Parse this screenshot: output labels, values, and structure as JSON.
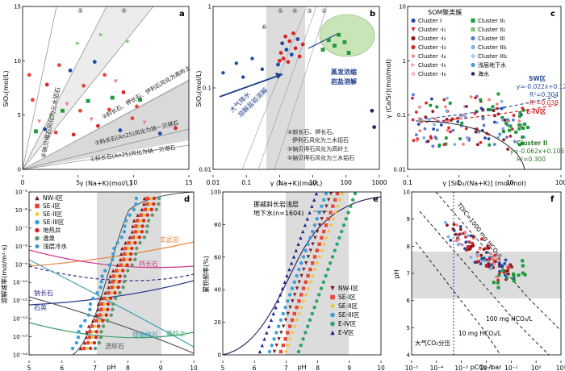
{
  "chart_data": [
    {
      "panel": "a",
      "type": "scatter",
      "xlabel": "γ (Na+K)(mol/L)",
      "ylabel": "SiO2(mol/L)",
      "xlim": [
        0,
        15
      ],
      "ylim": [
        0,
        15
      ],
      "xticks": [
        "0",
        "5",
        "10",
        "15"
      ],
      "yticks": [
        "0",
        "5",
        "10",
        "15"
      ],
      "reference_lines": [
        {
          "id": "①",
          "label": "①斜长石(An25)风化为钠－贝得石",
          "slope": 0.15
        },
        {
          "id": "②",
          "label": "②斜长石(An25)风化为钠－贝得石",
          "slope": 0.25
        },
        {
          "id": "③",
          "label": "③斜长石、钾长石、伊利石风化为高岭土",
          "slope": 0.85
        },
        {
          "id": "④",
          "label": "④",
          "slope": 2.0
        },
        {
          "id": "⑤",
          "label": "⑤",
          "slope": 3.5
        },
        {
          "id": "⑥",
          "label": "⑥钠贝得石风化为三水铝石",
          "slope": 7.0
        }
      ],
      "points": [
        [
          0.6,
          8.7
        ],
        [
          0.9,
          6.4
        ],
        [
          1.2,
          3.5
        ],
        [
          1.5,
          4.4
        ],
        [
          2.0,
          3.7
        ],
        [
          2.2,
          7.8
        ],
        [
          2.6,
          4.9
        ],
        [
          3.0,
          3.4
        ],
        [
          3.3,
          9.6
        ],
        [
          3.6,
          5.4
        ],
        [
          4.0,
          6.0
        ],
        [
          4.3,
          9.1
        ],
        [
          4.6,
          3.2
        ],
        [
          5.0,
          11.6
        ],
        [
          5.2,
          5.4
        ],
        [
          5.5,
          7.7
        ],
        [
          5.9,
          6.3
        ],
        [
          6.2,
          4.6
        ],
        [
          6.5,
          9.9
        ],
        [
          6.8,
          4.0
        ],
        [
          7.1,
          12.4
        ],
        [
          7.4,
          8.7
        ],
        [
          7.8,
          5.5
        ],
        [
          8.1,
          6.6
        ],
        [
          8.4,
          8.1
        ],
        [
          8.8,
          3.6
        ],
        [
          9.1,
          7.1
        ],
        [
          9.5,
          11.8
        ],
        [
          9.9,
          4.7
        ],
        [
          10.3,
          5.8
        ],
        [
          10.6,
          6.4
        ],
        [
          11.0,
          4.3
        ],
        [
          12.4,
          3.3
        ],
        [
          13.8,
          3.8
        ]
      ]
    },
    {
      "panel": "b",
      "type": "scatter",
      "scale": "log-log",
      "xlabel": "γ (Na+K)(mol/L)",
      "ylabel": "SiO2(mol/L)",
      "xlim": [
        0.01,
        1000
      ],
      "ylim": [
        0.01,
        10
      ],
      "xticks": [
        "0.01",
        "0.1",
        "1",
        "10",
        "100",
        "1000"
      ],
      "yticks": [
        "0.01",
        "0.1",
        "1"
      ],
      "annotations": [
        "大气降水",
        "溶解盐岩溶解",
        "蒸发浓缩",
        "岩盐溶解",
        "④斜长石、钾长石、",
        "伊利石风化为三水铝石",
        "⑤钠贝得石风化为高岭土",
        "⑥钠贝得石风化为三水铝石"
      ],
      "points": [
        [
          0.9,
          0.85
        ],
        [
          1.0,
          1.0
        ],
        [
          1.1,
          1.4
        ],
        [
          1.2,
          2.1
        ],
        [
          1.3,
          1.1
        ],
        [
          1.5,
          2.8
        ],
        [
          1.6,
          1.6
        ],
        [
          1.8,
          0.95
        ],
        [
          2.0,
          2.3
        ],
        [
          2.3,
          1.3
        ],
        [
          2.6,
          3.2
        ],
        [
          3.0,
          1.7
        ],
        [
          3.5,
          2.5
        ],
        [
          4.0,
          1.2
        ],
        [
          5.0,
          2.0
        ],
        [
          20,
          1.6
        ],
        [
          30,
          2.4
        ],
        [
          45,
          1.9
        ],
        [
          60,
          3.0
        ],
        [
          90,
          2.2
        ],
        [
          120,
          1.4
        ],
        [
          600,
          0.12
        ],
        [
          700,
          0.06
        ]
      ]
    },
    {
      "panel": "c",
      "type": "scatter",
      "scale": "log-log",
      "xlabel": "γ [SiO2/(Na+K)] (mol/mol)",
      "ylabel": "γ (Ca/Sr)(mol/mol)",
      "xlim": [
        0.1,
        100
      ],
      "ylim": [
        0.01,
        10
      ],
      "xticks": [
        "0.1",
        "1",
        "10",
        "100"
      ],
      "yticks": [
        "0.01",
        "0.1",
        "1",
        "10"
      ],
      "legend_title": "SOM聚类簇",
      "legend": [
        "Cluster I",
        "Cluster -I1",
        "Cluster -I2",
        "Cluster -I3",
        "Cluster -I4",
        "Cluster -I5",
        "Cluster -I6",
        "Cluster II1",
        "Cluster II2",
        "Cluster III",
        "Cluster III1",
        "Cluster III2",
        "浅层地下水",
        "海水"
      ],
      "fits": [
        {
          "label": "SW区",
          "equation": "y=-0.022x+0.121",
          "r2": "R²=0.304",
          "color": "#2a4d9c"
        },
        {
          "label": "E-IV区",
          "equation": "R²=0.038",
          "color": "#d7262b"
        },
        {
          "label": "Cluster II",
          "equation": "y=-0.062x+0.106",
          "r2": "R²=0.300",
          "color": "#2b7a2b"
        }
      ]
    },
    {
      "panel": "d",
      "type": "line",
      "xlabel": "pH",
      "ylabel": "溶解速率(mol/m²·s)",
      "xlim": [
        5,
        10
      ],
      "xticks": [
        "5",
        "6",
        "7",
        "8",
        "9",
        "10"
      ],
      "yticks": [
        "10⁻¹⁴",
        "10⁻¹³",
        "10⁻¹²",
        "10⁻¹¹",
        "10⁻¹⁰",
        "10⁻⁹",
        "10⁻⁸",
        "10⁻⁷",
        "10⁻⁶",
        "10⁻⁵"
      ],
      "legend": [
        "NW-I区",
        "SE-I区",
        "SE-II区",
        "SE-III区",
        "地热井",
        "温泉",
        "浅层冷水"
      ],
      "curve_labels": [
        "玄武岩",
        "钙长石",
        "钠长石",
        "石英",
        "镁橄榄石",
        "透辉石",
        "高岭土"
      ]
    },
    {
      "panel": "e",
      "type": "line",
      "xlabel": "pH",
      "ylabel": "累积频率(%)",
      "xlim": [
        5,
        10
      ],
      "ylim": [
        0,
        100
      ],
      "xticks": [
        "5",
        "6",
        "7",
        "8",
        "9",
        "10"
      ],
      "yticks": [
        "0",
        "20",
        "40",
        "60",
        "80",
        "100"
      ],
      "annotation": "挪威斜长岩浅层地下水(n=1604)",
      "legend": [
        "NW-I区",
        "SE-I区",
        "SE-II区",
        "SE-III区",
        "E-IV区",
        "E-V区"
      ]
    },
    {
      "panel": "f",
      "type": "scatter",
      "scale": "log-x",
      "xlabel": "pCO2 /bar",
      "ylabel": "pH",
      "xlim": [
        1e-05,
        10
      ],
      "ylim": [
        4,
        10
      ],
      "xticks": [
        "10⁻⁵",
        "10⁻⁴",
        "10⁻³",
        "10⁻²",
        "10⁻¹",
        "10⁰",
        "10¹"
      ],
      "yticks": [
        "4",
        "5",
        "6",
        "7",
        "8",
        "9",
        "10"
      ],
      "curve_labels": [
        "TDIC=1000 mg HCO3/L",
        "100 mg HCO3/L",
        "10 mg HCO3/L"
      ],
      "vline_label": "大气CO2分压"
    }
  ],
  "panels": {
    "a": {
      "letter": "a",
      "xlabel": "γ (Na+K)(mol/L)",
      "ylabel": "SiO₂(mol/L)",
      "l6": "⑥钠贝得石风化为三水铝石",
      "l3": "③斜长石、钾长石、伊利石风化为高岭土",
      "l2": "②斜长石(An25)风化为钠－贝得石",
      "l1": "①斜长石(An25)风化为钠－贝得石"
    },
    "b": {
      "letter": "b",
      "xlabel": "γ (Na+K)(mol/L)",
      "ylabel": "SiO₂(mol/L)",
      "rain": "大气降水",
      "salt": "溶解盐岩溶解",
      "evap": "蒸发浓缩",
      "halite": "岩盐溶解",
      "n4a": "④斜长石、钾长石、",
      "n4b": "伊利石风化为三水铝石",
      "n5": "⑤钠贝得石风化为高岭土",
      "n6": "⑥钠贝得石风化为三水铝石"
    },
    "c": {
      "letter": "c",
      "xlabel": "γ [SiO₂/(Na+K)] (mol/mol)",
      "ylabel": "γ (Ca/Sr)(mol/mol)",
      "legend_title": "SOM聚类簇",
      "sw": "SW区",
      "sw_eq": "y=-0.022x+0.121",
      "sw_r2": "R²=0.304",
      "e4_r2": "R²=0.038",
      "e4": "E-IV区",
      "c2": "Cluster II",
      "c2_eq": "y=-0.062x+0.106",
      "c2_r2": "R²=0.300"
    },
    "d": {
      "letter": "d",
      "xlabel": "pH",
      "ylabel": "溶解速率(mol/m²·s)",
      "basalt": "玄武岩",
      "anorthite": "钙长石",
      "albite": "钠长石",
      "quartz": "石英",
      "forsterite": "镁橄榄石",
      "diopside": "透辉石",
      "kaolin": "高岭土"
    },
    "e": {
      "letter": "e",
      "xlabel": "pH",
      "ylabel": "累积频率(%)",
      "ann1": "挪威斜长岩浅层",
      "ann2": "地下水(n=1604)"
    },
    "f": {
      "letter": "f",
      "xlabel": "pCO₂ /bar",
      "ylabel": "pH",
      "tdic": "TDIC=1000 mg HCO₃/L",
      "c100": "100 mg HCO₃/L",
      "c10": "10 mg HCO₃/L",
      "atm": "大气CO₂分压"
    }
  },
  "legend_c": [
    {
      "label": "Cluster I",
      "shape": "circle",
      "color": "#1f4aa8"
    },
    {
      "label": "Cluster II₁",
      "shape": "square",
      "color": "#1c9a3c"
    },
    {
      "label": "Cluster -I₁",
      "shape": "tri-down",
      "color": "#d7262b"
    },
    {
      "label": "Cluster II₂",
      "shape": "square",
      "color": "#7cc26f"
    },
    {
      "label": "Cluster -I₂",
      "shape": "circle",
      "color": "#8b1a1a"
    },
    {
      "label": "Cluster III",
      "shape": "circle",
      "color": "#5b7bd6"
    },
    {
      "label": "Cluster -I₃",
      "shape": "circle",
      "color": "#c9302c"
    },
    {
      "label": "Cluster III₁",
      "shape": "circle",
      "color": "#7faee6"
    },
    {
      "label": "Cluster -I₄",
      "shape": "diamond",
      "color": "#f08080"
    },
    {
      "label": "Cluster III₂",
      "shape": "circle",
      "color": "#a9d0f5"
    },
    {
      "label": "Cluster -I₅",
      "shape": "tri-right",
      "color": "#f4a3a3"
    },
    {
      "label": "浅层地下水",
      "shape": "circle",
      "color": "#3aa0d8"
    },
    {
      "label": "Cluster -I₆",
      "shape": "circle",
      "color": "#f9c0c0"
    },
    {
      "label": "海水",
      "shape": "pentagon",
      "color": "#1a2a6c"
    }
  ],
  "legend_d": [
    {
      "label": "NW-I区",
      "shape": "tri-up",
      "color": "#7a1f1f"
    },
    {
      "label": "SE-I区",
      "shape": "square",
      "color": "#e8463a"
    },
    {
      "label": "SE-II区",
      "shape": "diamond",
      "color": "#f0c419"
    },
    {
      "label": "SE-III区",
      "shape": "circle",
      "color": "#3aa0d8"
    },
    {
      "label": "地热井",
      "shape": "circle",
      "color": "#d7262b"
    },
    {
      "label": "温泉",
      "shape": "circle",
      "color": "#5a9a6a"
    },
    {
      "label": "浅层冷水",
      "shape": "pentagon",
      "color": "#3a8fc9"
    }
  ],
  "legend_e": [
    {
      "label": "NW-I区",
      "shape": "tri-down",
      "color": "#7a1f1f"
    },
    {
      "label": "SE-I区",
      "shape": "square",
      "color": "#e8463a"
    },
    {
      "label": "SE-II区",
      "shape": "diamond",
      "color": "#f0c419"
    },
    {
      "label": "SE-III区",
      "shape": "circle",
      "color": "#3aa0d8"
    },
    {
      "label": "E-IV区",
      "shape": "circle",
      "color": "#2aa36a"
    },
    {
      "label": "E-V区",
      "shape": "tri-up",
      "color": "#1a2a8c"
    }
  ],
  "ticks": {
    "a_x": [
      "0",
      "5",
      "10",
      "15"
    ],
    "a_y": [
      "0",
      "5",
      "10",
      "15"
    ],
    "b_x": [
      "0.01",
      "0.1",
      "1",
      "10",
      "100",
      "1000"
    ],
    "b_y": [
      "0.01",
      "0.1",
      "1"
    ],
    "c_x": [
      "0.1",
      "1",
      "10",
      "100"
    ],
    "c_y": [
      "0.01",
      "0.1",
      "1",
      "10"
    ],
    "d_x": [
      "5",
      "6",
      "7",
      "8",
      "9",
      "10"
    ],
    "d_y": [
      "10⁻¹⁴",
      "10⁻¹³",
      "10⁻¹²",
      "10⁻¹¹",
      "10⁻¹⁰",
      "10⁻⁹",
      "10⁻⁸",
      "10⁻⁷",
      "10⁻⁶",
      "10⁻⁵"
    ],
    "e_x": [
      "5",
      "6",
      "7",
      "8",
      "9",
      "10"
    ],
    "e_y": [
      "0",
      "20",
      "40",
      "60",
      "80",
      "100"
    ],
    "f_x": [
      "10⁻⁵",
      "10⁻⁴",
      "10⁻³",
      "10⁻²",
      "10⁻¹",
      "10⁰",
      "10¹"
    ],
    "f_y": [
      "4",
      "5",
      "6",
      "7",
      "8",
      "9",
      "10"
    ]
  },
  "colors": {
    "grey": "#cfcfcf",
    "red": "#d7262b",
    "blue": "#1f4aa8",
    "green": "#1c9a3c",
    "navy": "#1a2a6c"
  }
}
